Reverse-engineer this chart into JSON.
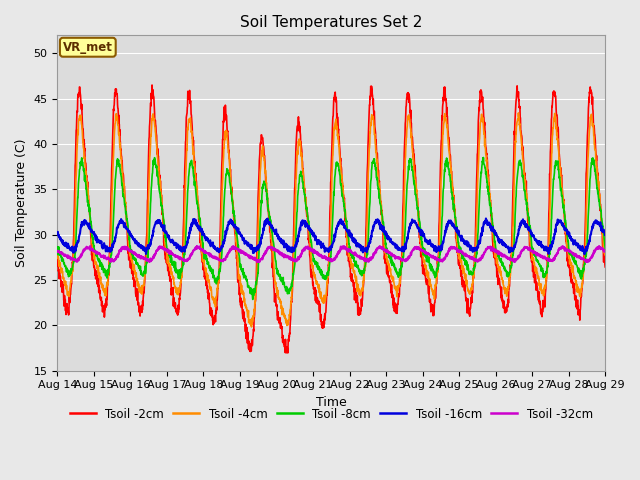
{
  "title": "Soil Temperatures Set 2",
  "xlabel": "Time",
  "ylabel": "Soil Temperature (C)",
  "ylim": [
    15,
    52
  ],
  "x_tick_labels": [
    "Aug 14",
    "Aug 15",
    "Aug 16",
    "Aug 17",
    "Aug 18",
    "Aug 19",
    "Aug 20",
    "Aug 21",
    "Aug 22",
    "Aug 23",
    "Aug 24",
    "Aug 25",
    "Aug 26",
    "Aug 27",
    "Aug 28",
    "Aug 29"
  ],
  "series": [
    {
      "label": "Tsoil -2cm",
      "color": "#FF0000",
      "lw": 1.2
    },
    {
      "label": "Tsoil -4cm",
      "color": "#FF8C00",
      "lw": 1.2
    },
    {
      "label": "Tsoil -8cm",
      "color": "#00CC00",
      "lw": 1.2
    },
    {
      "label": "Tsoil -16cm",
      "color": "#0000DD",
      "lw": 1.5
    },
    {
      "label": "Tsoil -32cm",
      "color": "#CC00CC",
      "lw": 1.5
    }
  ],
  "annotation_text": "VR_met",
  "fig_bg": "#E8E8E8",
  "plot_bg": "#DCDCDC",
  "title_fontsize": 11,
  "axis_fontsize": 9,
  "tick_fontsize": 8,
  "legend_fontsize": 8.5
}
